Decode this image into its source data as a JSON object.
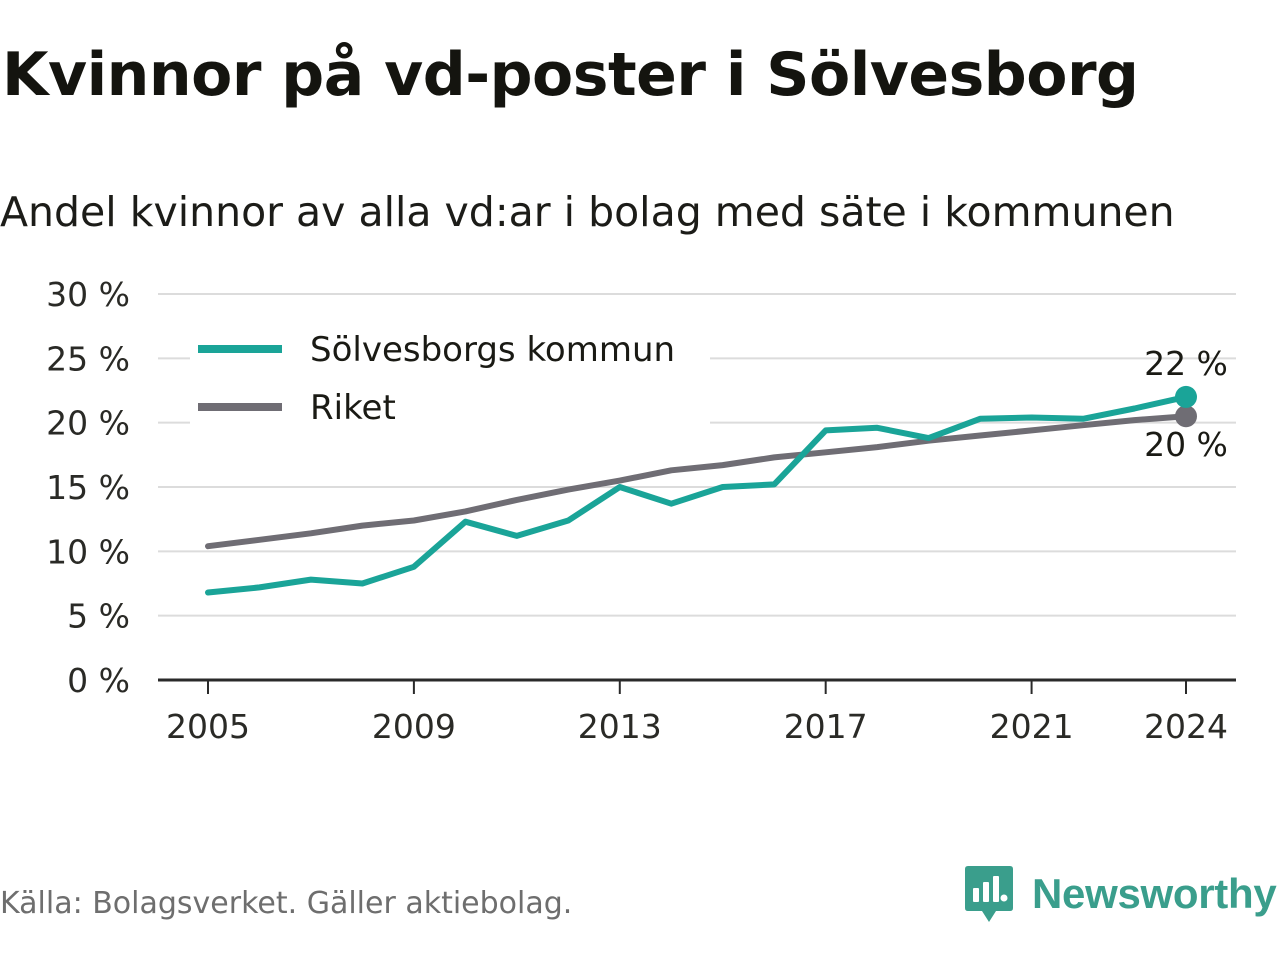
{
  "title": "Kvinnor på vd-poster i Sölvesborg",
  "subtitle": "Andel kvinnor av alla vd:ar i bolag med säte i kommunen",
  "source": "Källa: Bolagsverket. Gäller aktiebolag.",
  "brand": {
    "name": "Newsworthy",
    "icon": "newsworthy-logo-icon"
  },
  "colors": {
    "solvesborg": "#1aa498",
    "riket": "#6f6d74",
    "grid": "#dcdcdc",
    "axis": "#2a2a2a",
    "text": "#1a1a14"
  },
  "chart_data": {
    "type": "line",
    "x": [
      2005,
      2006,
      2007,
      2008,
      2009,
      2010,
      2011,
      2012,
      2013,
      2014,
      2015,
      2016,
      2017,
      2018,
      2019,
      2020,
      2021,
      2022,
      2023,
      2024
    ],
    "series": [
      {
        "name": "Sölvesborgs kommun",
        "color": "#1aa498",
        "values": [
          6.8,
          7.2,
          7.8,
          7.5,
          8.8,
          12.3,
          11.2,
          12.4,
          15.0,
          13.7,
          15.0,
          15.2,
          19.4,
          19.6,
          18.8,
          20.3,
          20.4,
          20.3,
          21.1,
          22.0
        ],
        "end_label": "22 %"
      },
      {
        "name": "Riket",
        "color": "#6f6d74",
        "values": [
          10.4,
          10.9,
          11.4,
          12.0,
          12.4,
          13.1,
          14.0,
          14.8,
          15.5,
          16.3,
          16.7,
          17.3,
          17.7,
          18.1,
          18.6,
          19.0,
          19.4,
          19.8,
          20.2,
          20.5
        ],
        "end_label": "20 %"
      }
    ],
    "y_ticks": [
      0,
      5,
      10,
      15,
      20,
      25,
      30
    ],
    "y_tick_labels": [
      "0 %",
      "5 %",
      "10 %",
      "15 %",
      "20 %",
      "25 %",
      "30 %"
    ],
    "x_ticks": [
      2005,
      2009,
      2013,
      2017,
      2021,
      2024
    ],
    "x_tick_labels": [
      "2005",
      "2009",
      "2013",
      "2017",
      "2021",
      "2024"
    ],
    "ylim": [
      0,
      30
    ],
    "xlim": [
      2005,
      2024
    ],
    "grid": true,
    "legend_position": "top-left",
    "xlabel": "",
    "ylabel": ""
  }
}
